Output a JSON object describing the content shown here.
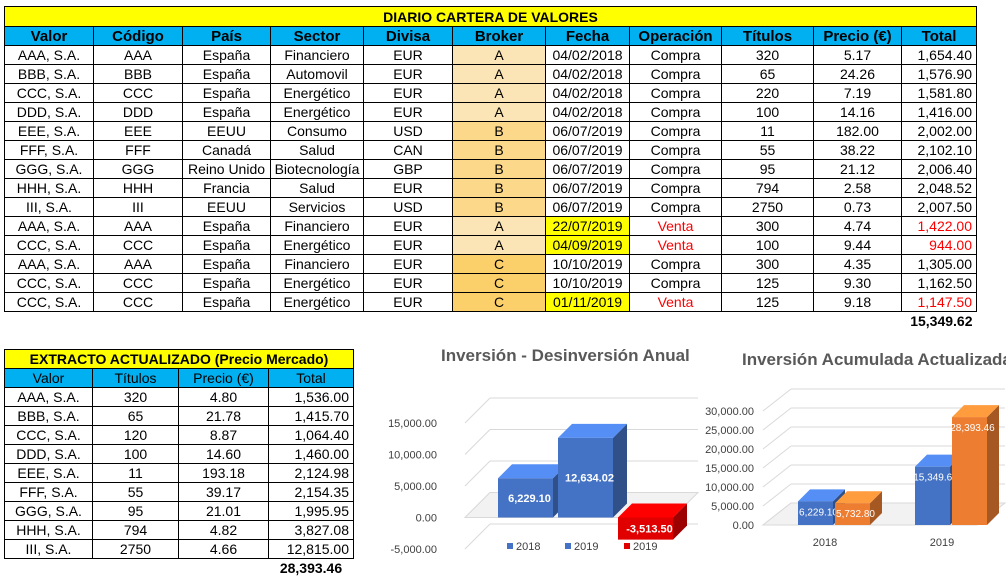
{
  "main": {
    "title": "DIARIO CARTERA DE VALORES",
    "headers": [
      "Valor",
      "Código",
      "País",
      "Sector",
      "Divisa",
      "Broker",
      "Fecha",
      "Operación",
      "Títulos",
      "Precio (€)",
      "Total"
    ],
    "rows": [
      {
        "valor": "AAA, S.A.",
        "codigo": "AAA",
        "pais": "España",
        "sector": "Financiero",
        "divisa": "EUR",
        "broker": "A",
        "fecha": "04/02/2018",
        "operacion": "Compra",
        "titulos": "320",
        "precio": "5.17",
        "total": "1,654.40",
        "venta": false
      },
      {
        "valor": "BBB, S.A.",
        "codigo": "BBB",
        "pais": "España",
        "sector": "Automovil",
        "divisa": "EUR",
        "broker": "A",
        "fecha": "04/02/2018",
        "operacion": "Compra",
        "titulos": "65",
        "precio": "24.26",
        "total": "1,576.90",
        "venta": false
      },
      {
        "valor": "CCC, S.A.",
        "codigo": "CCC",
        "pais": "España",
        "sector": "Energético",
        "divisa": "EUR",
        "broker": "A",
        "fecha": "04/02/2018",
        "operacion": "Compra",
        "titulos": "220",
        "precio": "7.19",
        "total": "1,581.80",
        "venta": false
      },
      {
        "valor": "DDD, S.A.",
        "codigo": "DDD",
        "pais": "España",
        "sector": "Energético",
        "divisa": "EUR",
        "broker": "A",
        "fecha": "04/02/2018",
        "operacion": "Compra",
        "titulos": "100",
        "precio": "14.16",
        "total": "1,416.00",
        "venta": false
      },
      {
        "valor": "EEE, S.A.",
        "codigo": "EEE",
        "pais": "EEUU",
        "sector": "Consumo",
        "divisa": "USD",
        "broker": "B",
        "fecha": "06/07/2019",
        "operacion": "Compra",
        "titulos": "11",
        "precio": "182.00",
        "total": "2,002.00",
        "venta": false
      },
      {
        "valor": "FFF, S.A.",
        "codigo": "FFF",
        "pais": "Canadá",
        "sector": "Salud",
        "divisa": "CAN",
        "broker": "B",
        "fecha": "06/07/2019",
        "operacion": "Compra",
        "titulos": "55",
        "precio": "38.22",
        "total": "2,102.10",
        "venta": false
      },
      {
        "valor": "GGG, S.A.",
        "codigo": "GGG",
        "pais": "Reino Unido",
        "sector": "Biotecnología",
        "divisa": "GBP",
        "broker": "B",
        "fecha": "06/07/2019",
        "operacion": "Compra",
        "titulos": "95",
        "precio": "21.12",
        "total": "2,006.40",
        "venta": false
      },
      {
        "valor": "HHH, S.A.",
        "codigo": "HHH",
        "pais": "Francia",
        "sector": "Salud",
        "divisa": "EUR",
        "broker": "B",
        "fecha": "06/07/2019",
        "operacion": "Compra",
        "titulos": "794",
        "precio": "2.58",
        "total": "2,048.52",
        "venta": false
      },
      {
        "valor": "III, S.A.",
        "codigo": "III",
        "pais": "EEUU",
        "sector": "Servicios",
        "divisa": "USD",
        "broker": "B",
        "fecha": "06/07/2019",
        "operacion": "Compra",
        "titulos": "2750",
        "precio": "0.73",
        "total": "2,007.50",
        "venta": false
      },
      {
        "valor": "AAA, S.A.",
        "codigo": "AAA",
        "pais": "España",
        "sector": "Financiero",
        "divisa": "EUR",
        "broker": "A",
        "fecha": "22/07/2019",
        "operacion": "Venta",
        "titulos": "300",
        "precio": "4.74",
        "total": "1,422.00",
        "venta": true
      },
      {
        "valor": "CCC, S.A.",
        "codigo": "CCC",
        "pais": "España",
        "sector": "Energético",
        "divisa": "EUR",
        "broker": "A",
        "fecha": "04/09/2019",
        "operacion": "Venta",
        "titulos": "100",
        "precio": "9.44",
        "total": "944.00",
        "venta": true
      },
      {
        "valor": "AAA, S.A.",
        "codigo": "AAA",
        "pais": "España",
        "sector": "Financiero",
        "divisa": "EUR",
        "broker": "C",
        "fecha": "10/10/2019",
        "operacion": "Compra",
        "titulos": "300",
        "precio": "4.35",
        "total": "1,305.00",
        "venta": false
      },
      {
        "valor": "CCC, S.A.",
        "codigo": "CCC",
        "pais": "España",
        "sector": "Energético",
        "divisa": "EUR",
        "broker": "C",
        "fecha": "10/10/2019",
        "operacion": "Compra",
        "titulos": "125",
        "precio": "9.30",
        "total": "1,162.50",
        "venta": false
      },
      {
        "valor": "CCC, S.A.",
        "codigo": "CCC",
        "pais": "España",
        "sector": "Energético",
        "divisa": "EUR",
        "broker": "C",
        "fecha": "01/11/2019",
        "operacion": "Venta",
        "titulos": "125",
        "precio": "9.18",
        "total": "1,147.50",
        "venta": true
      }
    ],
    "grand_total": "15,349.62"
  },
  "extract": {
    "title": "EXTRACTO ACTUALIZADO (Precio Mercado)",
    "headers": [
      "Valor",
      "Títulos",
      "Precio (€)",
      "Total"
    ],
    "rows": [
      {
        "valor": "AAA, S.A.",
        "titulos": "320",
        "precio": "4.80",
        "total": "1,536.00"
      },
      {
        "valor": "BBB, S.A.",
        "titulos": "65",
        "precio": "21.78",
        "total": "1,415.70"
      },
      {
        "valor": "CCC, S.A.",
        "titulos": "120",
        "precio": "8.87",
        "total": "1,064.40"
      },
      {
        "valor": "DDD, S.A.",
        "titulos": "100",
        "precio": "14.60",
        "total": "1,460.00"
      },
      {
        "valor": "EEE, S.A.",
        "titulos": "11",
        "precio": "193.18",
        "total": "2,124.98"
      },
      {
        "valor": "FFF, S.A.",
        "titulos": "55",
        "precio": "39.17",
        "total": "2,154.35"
      },
      {
        "valor": "GGG, S.A.",
        "titulos": "95",
        "precio": "21.01",
        "total": "1,995.95"
      },
      {
        "valor": "HHH, S.A.",
        "titulos": "794",
        "precio": "4.82",
        "total": "3,827.08"
      },
      {
        "valor": "III, S.A.",
        "titulos": "2750",
        "precio": "4.66",
        "total": "12,815.00"
      }
    ],
    "grand_total": "28,393.46"
  },
  "colors": {
    "blue": "#4472c4",
    "red": "#e00000",
    "orange": "#ed7d31"
  },
  "chart_data": [
    {
      "type": "bar",
      "title": "Inversión - Desinversión Anual",
      "ylim": [
        -5000,
        15000
      ],
      "yticks": [
        "15,000.00",
        "10,000.00",
        "5,000.00",
        "0.00",
        "-5,000.00"
      ],
      "bars": [
        {
          "legend": "2018",
          "value": 6229.1,
          "label": "6,229.10",
          "color": "#4472c4"
        },
        {
          "legend": "2019",
          "value": 12634.02,
          "label": "12,634.02",
          "color": "#4472c4"
        },
        {
          "legend": "2019",
          "value": -3513.5,
          "label": "-3,513.50",
          "color": "#e00000"
        }
      ],
      "legend_position": "bottom"
    },
    {
      "type": "bar",
      "title": "Inversión Acumulada Actualizada",
      "ylim": [
        0,
        30000
      ],
      "yticks": [
        "30,000.00",
        "25,000.00",
        "20,000.00",
        "15,000.00",
        "10,000.00",
        "5,000.00",
        "0.00"
      ],
      "categories": [
        "2018",
        "2019"
      ],
      "series": [
        {
          "values": [
            6229.1,
            15349.62
          ],
          "labels": [
            "6,229.10",
            "15,349.62"
          ],
          "color": "#4472c4"
        },
        {
          "values": [
            5732.8,
            28393.46
          ],
          "labels": [
            "5,732.80",
            "28,393.46"
          ],
          "color": "#ed7d31"
        }
      ]
    }
  ]
}
